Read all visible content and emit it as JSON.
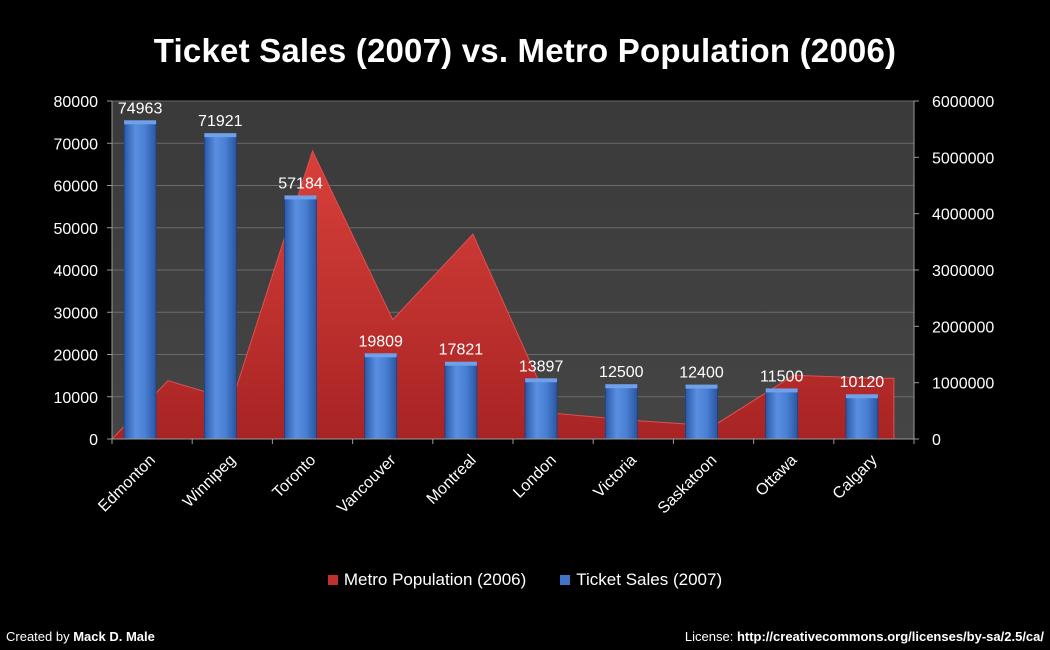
{
  "chart_data": {
    "type": "bar",
    "title": "Ticket Sales (2007) vs. Metro Population (2006)",
    "categories": [
      "Edmonton",
      "Winnipeg",
      "Toronto",
      "Vancouver",
      "Montreal",
      "London",
      "Victoria",
      "Saskatoon",
      "Ottawa",
      "Calgary"
    ],
    "series": [
      {
        "name": "Ticket Sales (2007)",
        "type": "bar",
        "axis": "left",
        "values": [
          74963,
          71921,
          57184,
          19809,
          17821,
          13897,
          12500,
          12400,
          11500,
          10120
        ],
        "data_labels": [
          "74963",
          "71921",
          "57184",
          "19809",
          "17821",
          "13897",
          "12500",
          "12400",
          "11500",
          "10120"
        ]
      },
      {
        "name": "Metro Population (2006)",
        "type": "area",
        "axis": "right",
        "values": [
          1034945,
          694668,
          5113149,
          2116581,
          3635571,
          457720,
          330088,
          233923,
          1130761,
          1079310
        ]
      }
    ],
    "ylim_left": [
      0,
      80000
    ],
    "ylim_right": [
      0,
      6000000
    ],
    "left_ticks": [
      "0",
      "10000",
      "20000",
      "30000",
      "40000",
      "50000",
      "60000",
      "70000",
      "80000"
    ],
    "right_ticks": [
      "0",
      "1000000",
      "2000000",
      "3000000",
      "4000000",
      "5000000",
      "6000000"
    ],
    "grid": true,
    "legend_position": "bottom",
    "colors": {
      "background": "#000000",
      "plot": "#3d3d3d",
      "bar": "#3f74c8",
      "area": "#c0302e"
    }
  },
  "legend": {
    "items": [
      {
        "label": "Metro Population (2006)",
        "color": "#c0302e"
      },
      {
        "label": "Ticket Sales (2007)",
        "color": "#3f74c8"
      }
    ]
  },
  "footer": {
    "created_prefix": "Created by",
    "author": "Mack D. Male",
    "license_prefix": "License:",
    "license_url": "http://creativecommons.org/licenses/by-sa/2.5/ca/"
  }
}
